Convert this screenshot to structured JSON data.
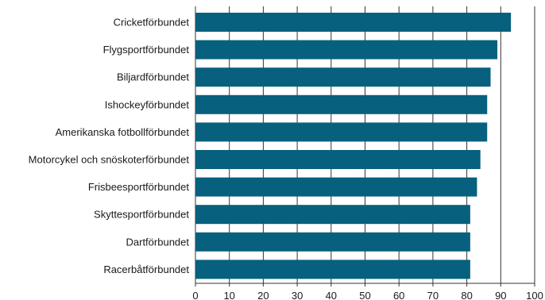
{
  "chart_data": {
    "type": "bar",
    "orientation": "horizontal",
    "title": "",
    "xlabel": "",
    "ylabel": "",
    "categories": [
      "Cricketförbundet",
      "Flygsportförbundet",
      "Biljardförbundet",
      "Ishockeyförbundet",
      "Amerikanska fotbollförbundet",
      "Motorcykel och snöskoterförbundet",
      "Frisbeesportförbundet",
      "Skyttesportförbundet",
      "Dartförbundet",
      "Racerbåtförbundet"
    ],
    "values": [
      93,
      89,
      87,
      86,
      86,
      84,
      83,
      81,
      81,
      81
    ],
    "xlim": [
      0,
      100
    ],
    "xticks": [
      "0",
      "10",
      "20",
      "30",
      "40",
      "50",
      "60",
      "70",
      "80",
      "90",
      "100"
    ],
    "grid": "vertical",
    "bar_color": "#07607e"
  }
}
